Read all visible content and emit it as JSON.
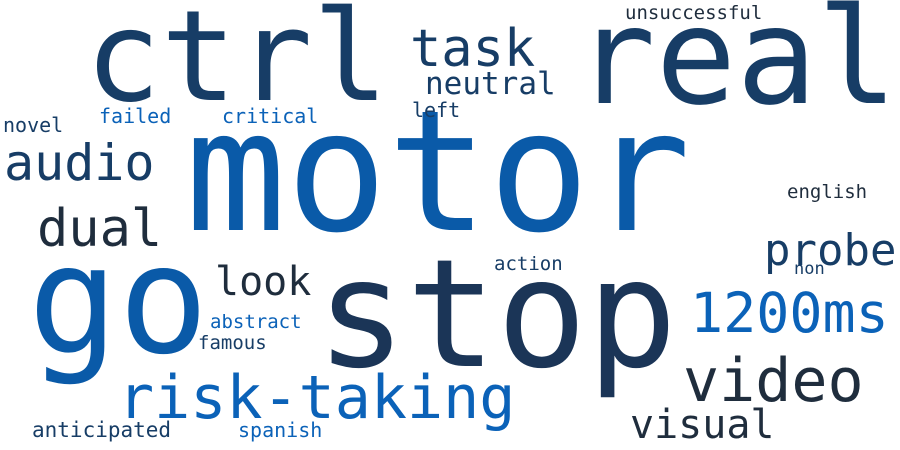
{
  "colors": {
    "background": "#ffffff",
    "dark_navy": "#1b3557",
    "navy": "#173d66",
    "blue": "#0a5aa8",
    "bright_blue": "#0b62b8",
    "slate": "#1f2d3d"
  },
  "words": [
    {
      "id": "motor",
      "text": "motor",
      "color": "#0a5aa8"
    },
    {
      "id": "stop",
      "text": "stop",
      "color": "#1b3557"
    },
    {
      "id": "ctrl",
      "text": "ctrl",
      "color": "#173d66"
    },
    {
      "id": "real",
      "text": "real",
      "color": "#173d66"
    },
    {
      "id": "go",
      "text": "go",
      "color": "#0a5aa8"
    },
    {
      "id": "risk-taking",
      "text": "risk-taking",
      "color": "#0b62b8"
    },
    {
      "id": "video",
      "text": "video",
      "color": "#1f2d3d"
    },
    {
      "id": "1200ms",
      "text": "1200ms",
      "color": "#0b62b8"
    },
    {
      "id": "task",
      "text": "task",
      "color": "#173d66"
    },
    {
      "id": "audio",
      "text": "audio",
      "color": "#173d66"
    },
    {
      "id": "dual",
      "text": "dual",
      "color": "#1f2d3d"
    },
    {
      "id": "probe",
      "text": "probe",
      "color": "#173d66"
    },
    {
      "id": "look",
      "text": "look",
      "color": "#1f2d3d"
    },
    {
      "id": "visual",
      "text": "visual",
      "color": "#1f2d3d"
    },
    {
      "id": "neutral",
      "text": "neutral",
      "color": "#173d66"
    },
    {
      "id": "unsuccessful",
      "text": "unsuccessful",
      "color": "#1f2d3d"
    },
    {
      "id": "english",
      "text": "english",
      "color": "#1f2d3d"
    },
    {
      "id": "critical",
      "text": "critical",
      "color": "#0b62b8"
    },
    {
      "id": "failed",
      "text": "failed",
      "color": "#0b62b8"
    },
    {
      "id": "novel",
      "text": "novel",
      "color": "#173d66"
    },
    {
      "id": "left",
      "text": "left",
      "color": "#173d66"
    },
    {
      "id": "action",
      "text": "action",
      "color": "#173d66"
    },
    {
      "id": "non",
      "text": "non",
      "color": "#173d66"
    },
    {
      "id": "abstract",
      "text": "abstract",
      "color": "#0b62b8"
    },
    {
      "id": "famous",
      "text": "famous",
      "color": "#173d66"
    },
    {
      "id": "anticipated",
      "text": "anticipated",
      "color": "#173d66"
    },
    {
      "id": "spanish",
      "text": "spanish",
      "color": "#0b62b8"
    }
  ]
}
